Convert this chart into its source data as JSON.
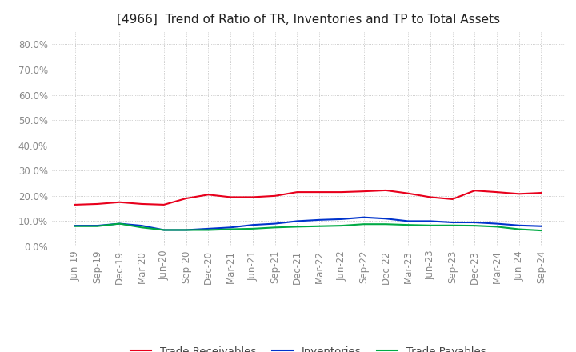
{
  "title": "[4966]  Trend of Ratio of TR, Inventories and TP to Total Assets",
  "x_labels": [
    "Jun-19",
    "Sep-19",
    "Dec-19",
    "Mar-20",
    "Jun-20",
    "Sep-20",
    "Dec-20",
    "Mar-21",
    "Jun-21",
    "Sep-21",
    "Dec-21",
    "Mar-22",
    "Jun-22",
    "Sep-22",
    "Dec-22",
    "Mar-23",
    "Jun-23",
    "Sep-23",
    "Dec-23",
    "Mar-24",
    "Jun-24",
    "Sep-24"
  ],
  "trade_receivables": [
    0.165,
    0.168,
    0.175,
    0.168,
    0.165,
    0.19,
    0.205,
    0.195,
    0.195,
    0.2,
    0.215,
    0.215,
    0.215,
    0.218,
    0.222,
    0.21,
    0.195,
    0.187,
    0.221,
    0.215,
    0.208,
    0.212
  ],
  "inventories": [
    0.082,
    0.082,
    0.09,
    0.082,
    0.065,
    0.065,
    0.07,
    0.075,
    0.085,
    0.09,
    0.1,
    0.105,
    0.108,
    0.115,
    0.11,
    0.1,
    0.1,
    0.095,
    0.095,
    0.09,
    0.083,
    0.08
  ],
  "trade_payables": [
    0.08,
    0.08,
    0.09,
    0.075,
    0.065,
    0.065,
    0.065,
    0.068,
    0.07,
    0.075,
    0.078,
    0.08,
    0.082,
    0.088,
    0.088,
    0.085,
    0.083,
    0.083,
    0.082,
    0.078,
    0.068,
    0.063
  ],
  "colors": {
    "trade_receivables": "#e8001c",
    "inventories": "#0033cc",
    "trade_payables": "#00aa44"
  },
  "ylim": [
    0.0,
    0.85
  ],
  "yticks": [
    0.0,
    0.1,
    0.2,
    0.3,
    0.4,
    0.5,
    0.6,
    0.7,
    0.8
  ],
  "legend_labels": [
    "Trade Receivables",
    "Inventories",
    "Trade Payables"
  ],
  "background_color": "#ffffff",
  "plot_bg_color": "#ffffff",
  "grid_color": "#bbbbbb",
  "title_fontsize": 11,
  "axis_fontsize": 8.5,
  "legend_fontsize": 9.5,
  "tick_color": "#888888",
  "line_width": 1.5
}
